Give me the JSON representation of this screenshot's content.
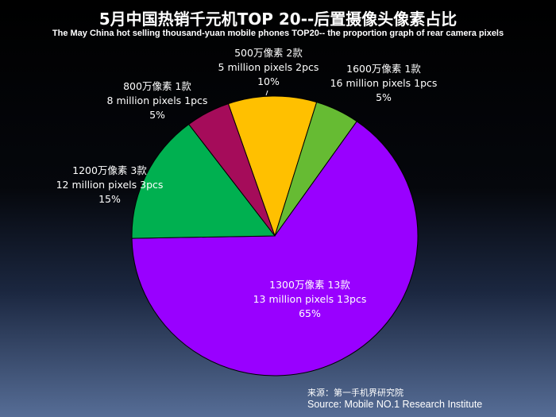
{
  "title": "5月中国热销千元机TOP 20--后置摄像头像素占比",
  "subtitle": "The May China hot selling thousand-yuan mobile phones TOP20-- the proportion graph of rear camera pixels",
  "source": {
    "cn": "来源：第一手机界研究院",
    "en": "Source: Mobile NO.1 Research Institute"
  },
  "chart_data": {
    "type": "pie",
    "title": "5月中国热销千元机TOP 20--后置摄像头像素占比",
    "subtitle": "The May China hot selling thousand-yuan mobile phones TOP20-- the proportion graph of rear camera pixels",
    "slices": [
      {
        "key": "s5",
        "cn": "500万像素  2款",
        "en": "5 million pixels 2pcs",
        "pct": "10%",
        "value": 10,
        "color": "#ffc000"
      },
      {
        "key": "s16",
        "cn": "1600万像素 1款",
        "en": "16 million pixels  1pcs",
        "pct": "5%",
        "value": 5,
        "color": "#66bb33"
      },
      {
        "key": "s13",
        "cn": "1300万像素 13款",
        "en": "13 million pixels 13pcs",
        "pct": "65%",
        "value": 65,
        "color": "#9900ff"
      },
      {
        "key": "s12",
        "cn": "1200万像素  3款",
        "en": "12 million pixels 3pcs",
        "pct": "15%",
        "value": 15,
        "color": "#00b050"
      },
      {
        "key": "s8",
        "cn": "800万像素  1款",
        "en": "8 million pixels 1pcs",
        "pct": "5%",
        "value": 5,
        "color": "#a50c5a"
      }
    ]
  }
}
